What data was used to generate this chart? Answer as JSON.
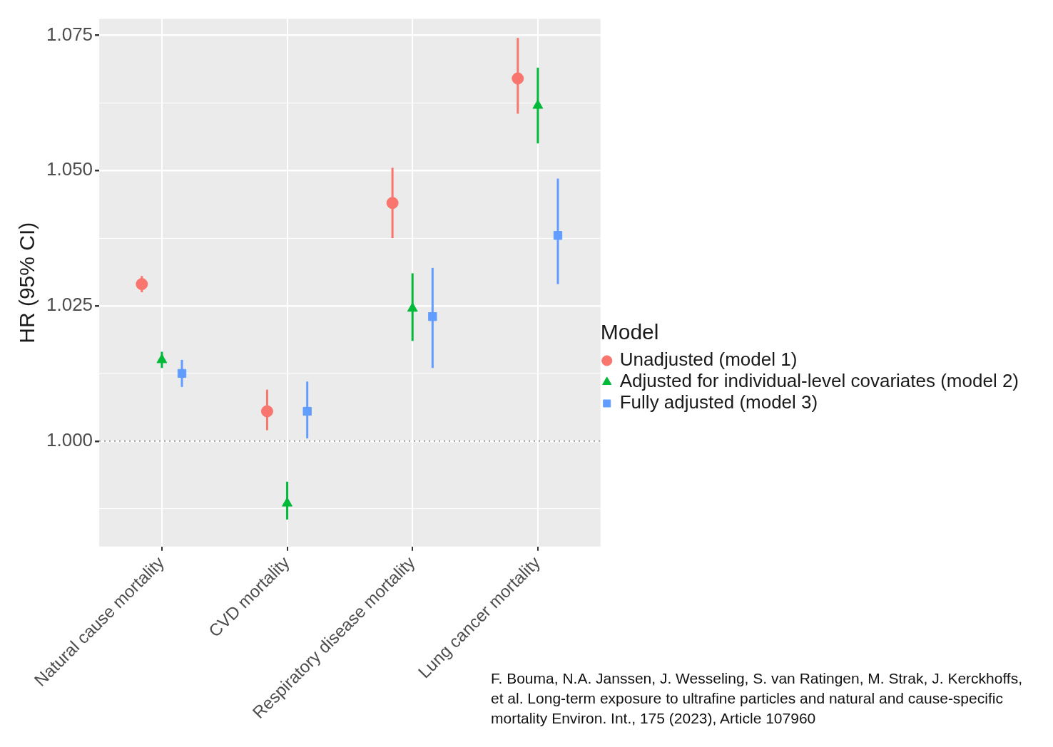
{
  "chart_data": {
    "type": "scatter",
    "ylabel": "HR (95% CI)",
    "legend_title": "Model",
    "legend": "right",
    "grid": true,
    "categories": [
      "Natural cause mortality",
      "CVD mortality",
      "Respiratory disease mortality",
      "Lung cancer mortality"
    ],
    "ylim": [
      0.9805,
      1.078
    ],
    "yticks": [
      {
        "value": 0.9875,
        "label": null
      },
      {
        "value": 1,
        "label": "1.000"
      },
      {
        "value": 1.0125,
        "label": null
      },
      {
        "value": 1.025,
        "label": "1.025"
      },
      {
        "value": 1.0375,
        "label": null
      },
      {
        "value": 1.05,
        "label": "1.050"
      },
      {
        "value": 1.0625,
        "label": null
      },
      {
        "value": 1.075,
        "label": "1.075"
      }
    ],
    "series": [
      {
        "name": "Unadjusted (model 1)",
        "color": "#f8766d",
        "marker": "circle",
        "values": [
          1.029,
          1.0055,
          1.044,
          1.067
        ],
        "errors": [
          [
            1.0275,
            1.0305
          ],
          [
            1.002,
            1.0095
          ],
          [
            1.0375,
            1.0505
          ],
          [
            1.0605,
            1.0745
          ]
        ]
      },
      {
        "name": "Adjusted for individual-level covariates (model 2)",
        "color": "#00ba38",
        "marker": "triangle",
        "values": [
          1.015,
          0.9885,
          1.0245,
          1.062
        ],
        "errors": [
          [
            1.0135,
            1.0165
          ],
          [
            0.9855,
            0.9925
          ],
          [
            1.0185,
            1.031
          ],
          [
            1.055,
            1.069
          ]
        ]
      },
      {
        "name": "Fully adjusted (model 3)",
        "color": "#619cff",
        "marker": "square",
        "values": [
          1.0125,
          1.0055,
          1.023,
          1.038
        ],
        "errors": [
          [
            1.01,
            1.015
          ],
          [
            1.0005,
            1.011
          ],
          [
            1.0135,
            1.032
          ],
          [
            1.029,
            1.0485
          ]
        ]
      }
    ],
    "ref_lines": [
      {
        "axis": "y",
        "value": 1,
        "color": "#999999",
        "line_style": "dotted"
      }
    ],
    "annotations": [
      "F. Bouma, N.A. Janssen, J. Wesseling, S. van Ratingen, M. Strak, J. Kerckhoffs, et al. Long-term exposure to ultrafine particles and natural and cause-specific mortality Environ. Int., 175 (2023), Article 107960"
    ]
  }
}
